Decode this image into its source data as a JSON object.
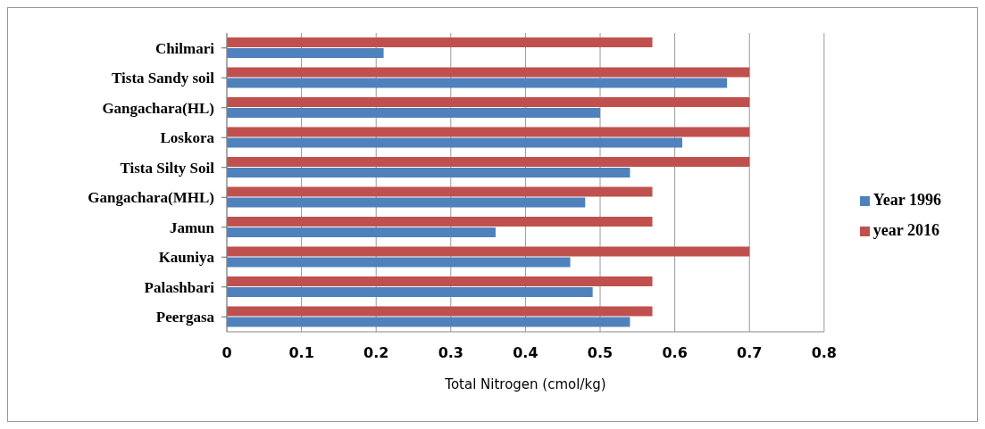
{
  "chart_data": {
    "type": "bar",
    "orientation": "horizontal",
    "xlabel": "Total Nitrogen (cmol/kg)",
    "categories": [
      "Chilmari",
      "Tista Sandy soil",
      "Gangachara(HL)",
      "Loskora",
      "Tista Silty Soil",
      "Gangachara(MHL)",
      "Jamun",
      "Kauniya",
      "Palashbari",
      "Peergasa"
    ],
    "series": [
      {
        "name": "year 2016",
        "color": "#c0504d",
        "values": [
          0.57,
          0.7,
          0.7,
          0.7,
          0.7,
          0.57,
          0.57,
          0.7,
          0.57,
          0.57
        ]
      },
      {
        "name": "Year 1996",
        "color": "#4f81bd",
        "values": [
          0.21,
          0.67,
          0.5,
          0.61,
          0.54,
          0.48,
          0.36,
          0.46,
          0.49,
          0.54
        ]
      }
    ],
    "xlim": [
      0,
      0.8
    ],
    "xticks": [
      0,
      0.1,
      0.2,
      0.3,
      0.4,
      0.5,
      0.6,
      0.7,
      0.8
    ],
    "grid": "x",
    "legend": "right"
  }
}
